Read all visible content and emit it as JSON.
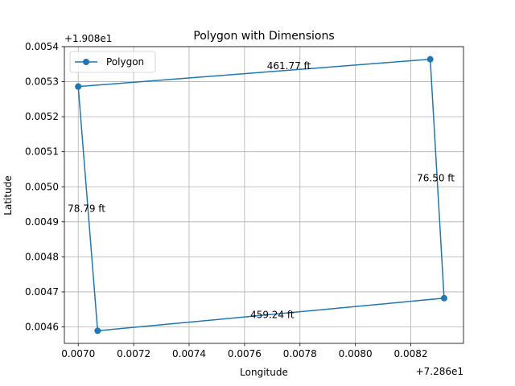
{
  "chart_data": {
    "type": "line",
    "title": "Polygon with Dimensions",
    "xlabel": "Longitude",
    "ylabel": "Latitude",
    "x_offset_label": "+7.286e1",
    "y_offset_label": "+1.908e1",
    "xlim": [
      0.00695,
      0.00839
    ],
    "ylim": [
      0.004553,
      0.0054
    ],
    "xticks": [
      0.007,
      0.0072,
      0.0074,
      0.0076,
      0.0078,
      0.008,
      0.0082
    ],
    "xtick_labels": [
      "0.0070",
      "0.0072",
      "0.0074",
      "0.0076",
      "0.0078",
      "0.0080",
      "0.0082"
    ],
    "yticks": [
      0.0046,
      0.0047,
      0.0048,
      0.0049,
      0.005,
      0.0051,
      0.0052,
      0.0053,
      0.0054
    ],
    "ytick_labels": [
      "0.0046",
      "0.0047",
      "0.0048",
      "0.0049",
      "0.0050",
      "0.0051",
      "0.0052",
      "0.0053",
      "0.0054"
    ],
    "grid": true,
    "legend_position": "top-left",
    "series": [
      {
        "name": "Polygon",
        "color": "#1f77b4",
        "marker": "circle",
        "x": [
          0.007,
          0.00827,
          0.00832,
          0.00707,
          0.007
        ],
        "y": [
          0.005286,
          0.005364,
          0.004682,
          0.004589,
          0.005286
        ]
      }
    ],
    "annotations": [
      {
        "text": "461.77 ft",
        "x": 0.00776,
        "y": 0.005345
      },
      {
        "text": "76.50 ft",
        "x": 0.00829,
        "y": 0.005025
      },
      {
        "text": "459.24 ft",
        "x": 0.0077,
        "y": 0.004635
      },
      {
        "text": "78.79 ft",
        "x": 0.00703,
        "y": 0.004937
      }
    ]
  }
}
